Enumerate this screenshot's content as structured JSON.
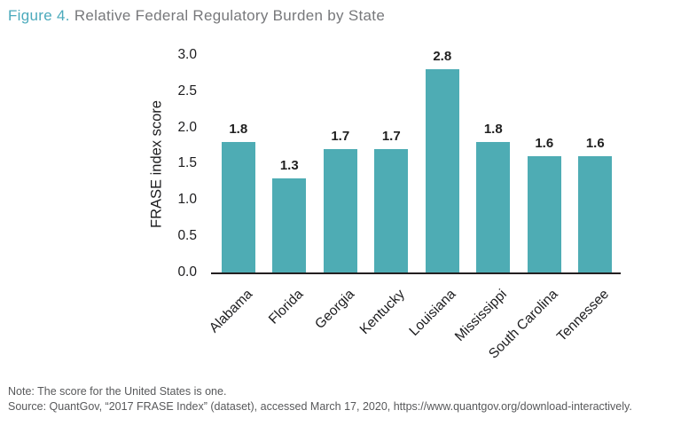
{
  "title": {
    "figure_label": "Figure 4.",
    "text": " Relative Federal Regulatory Burden by State"
  },
  "colors": {
    "bar": "#4eacb4",
    "figure_label_accent": "#4baabc",
    "title_gray": "#77787b",
    "axis_black": "#231f20",
    "note_gray": "#58595b"
  },
  "chart_data": {
    "type": "bar",
    "title": "Relative Federal Regulatory Burden by State",
    "categories": [
      "Alabama",
      "Florida",
      "Georgia",
      "Kentucky",
      "Louisiana",
      "Mississippi",
      "South Carolina",
      "Tennessee"
    ],
    "values": [
      1.8,
      1.3,
      1.7,
      1.7,
      2.8,
      1.8,
      1.6,
      1.6
    ],
    "value_labels": [
      "1.8",
      "1.3",
      "1.7",
      "1.7",
      "2.8",
      "1.8",
      "1.6",
      "1.6"
    ],
    "xlabel": "",
    "ylabel": "FRASE index score",
    "ylim": [
      0.0,
      3.0
    ],
    "yticks": [
      "3.0",
      "2.5",
      "2.0",
      "1.5",
      "1.0",
      "0.5",
      "0.0"
    ],
    "grid": "off",
    "legend": "none",
    "bar_color": "#4eacb4"
  },
  "footer": {
    "note": "Note: The score for the United States is one.",
    "source": "Source: QuantGov, “2017 FRASE Index” (dataset), accessed March 17, 2020, https://www.quantgov.org/download-interactively."
  }
}
